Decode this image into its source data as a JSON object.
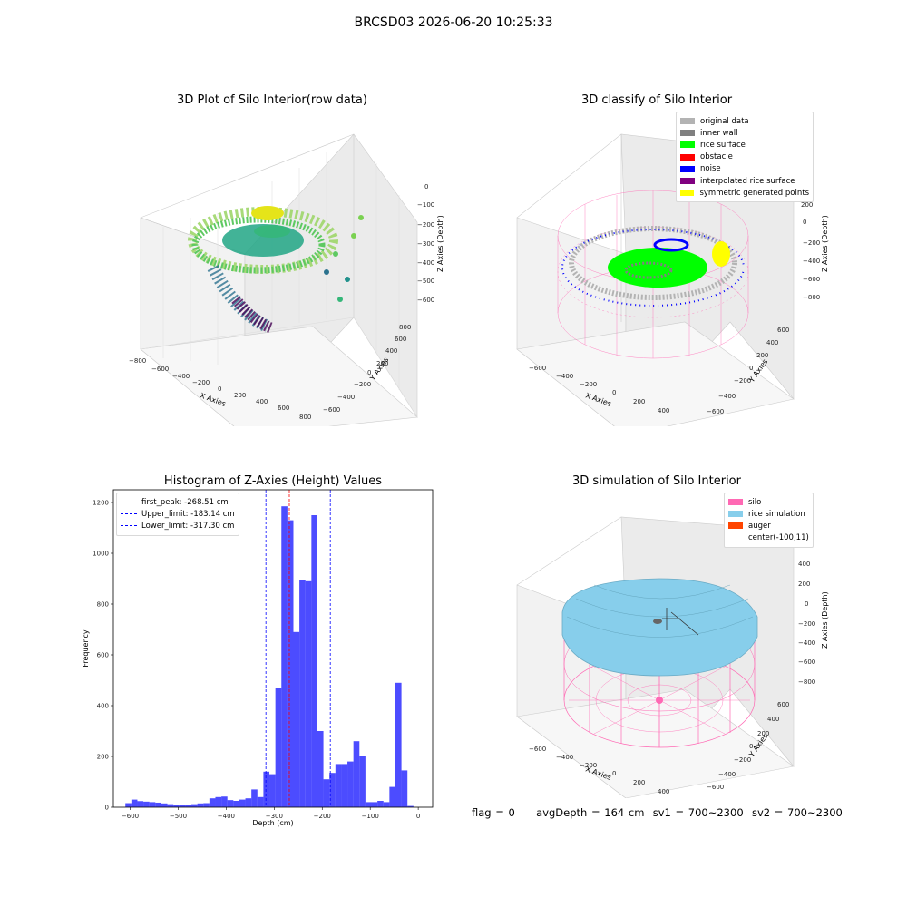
{
  "figure": {
    "suptitle": "BRCSD03 2026-06-20 10:25:33"
  },
  "panels": {
    "raw": {
      "title": "3D Plot of Silo Interior(row data)",
      "xlabel": "X Axies",
      "ylabel": "Y Axies",
      "zlabel": "Z Axies (Depth)",
      "xticks": [
        "−800",
        "−600",
        "−400",
        "−200",
        "0",
        "200",
        "400",
        "600",
        "800"
      ],
      "yticks": [
        "800",
        "600",
        "400",
        "200",
        "0",
        "−200",
        "−400",
        "−600"
      ],
      "zticks": [
        "0",
        "−100",
        "−200",
        "−300",
        "−400",
        "−500",
        "−600"
      ]
    },
    "classify": {
      "title": "3D classify of Silo Interior",
      "xlabel": "X Axies",
      "ylabel": "Y Axies",
      "zlabel": "Z Axies (Depth)",
      "xticks": [
        "−600",
        "−400",
        "−200",
        "0",
        "200",
        "400"
      ],
      "yticks": [
        "600",
        "400",
        "200",
        "0",
        "−200",
        "−400",
        "−600"
      ],
      "zticks": [
        "200",
        "0",
        "−200",
        "−400",
        "−600",
        "−800"
      ],
      "legend": [
        {
          "label": "original data",
          "color": "#b3b3b3"
        },
        {
          "label": "inner wall",
          "color": "#808080"
        },
        {
          "label": "rice surface",
          "color": "#00ff00"
        },
        {
          "label": "obstacle",
          "color": "#ff0000"
        },
        {
          "label": "noise",
          "color": "#0000ff"
        },
        {
          "label": "interpolated rice surface",
          "color": "#800080"
        },
        {
          "label": "symmetric generated points",
          "color": "#ffff00"
        }
      ]
    },
    "simulation": {
      "title": "3D simulation of Silo Interior",
      "xlabel": "X Axies",
      "ylabel": "Y Axies",
      "zlabel": "Z Axies (Depth)",
      "xticks": [
        "−600",
        "−400",
        "−200",
        "0",
        "200",
        "400"
      ],
      "yticks": [
        "600",
        "400",
        "200",
        "0",
        "−200",
        "−400",
        "−600"
      ],
      "zticks": [
        "400",
        "200",
        "0",
        "−200",
        "−400",
        "−600",
        "−800"
      ],
      "legend": [
        {
          "label": "silo",
          "color": "#ff69b4"
        },
        {
          "label": "rice simulation",
          "color": "#87ceeb"
        },
        {
          "label": "auger",
          "color": "#ff4500"
        },
        {
          "label": "center(-100,11)",
          "color": ""
        }
      ]
    }
  },
  "status": {
    "flag": "flag = 0",
    "avg_depth": "avgDepth = 164 cm",
    "sv1": "sv1 = 700~2300",
    "sv2": "sv2 = 700~2300"
  },
  "chart_data": [
    {
      "type": "bar",
      "title": "Histogram of Z-Axies (Height) Values",
      "xlabel": "Depth (cm)",
      "ylabel": "Frequency",
      "bar_color": "#0000ff",
      "bin_start": -610,
      "bin_width": 12.5,
      "values": [
        16,
        30,
        24,
        22,
        20,
        18,
        15,
        12,
        10,
        8,
        8,
        12,
        15,
        16,
        35,
        40,
        42,
        28,
        25,
        30,
        35,
        70,
        40,
        140,
        130,
        470,
        1185,
        1130,
        690,
        895,
        890,
        1150,
        300,
        110,
        135,
        170,
        170,
        180,
        260,
        200,
        20,
        20,
        25,
        20,
        80,
        490,
        145,
        5
      ],
      "xlim": [
        -635,
        30
      ],
      "ylim": [
        0,
        1250
      ],
      "xticks": [
        "−600",
        "−500",
        "−400",
        "−300",
        "−200",
        "−100",
        "0"
      ],
      "yticks": [
        "0",
        "200",
        "400",
        "600",
        "800",
        "1000",
        "1200"
      ],
      "reference_lines": [
        {
          "label": "first_peak: -268.51 cm",
          "value": -268.51,
          "color": "#ff0000"
        },
        {
          "label": "Upper_limit: -183.14 cm",
          "value": -183.14,
          "color": "#0000ff"
        },
        {
          "label": "Lower_limit: -317.30 cm",
          "value": -317.3,
          "color": "#0000ff"
        }
      ]
    }
  ]
}
